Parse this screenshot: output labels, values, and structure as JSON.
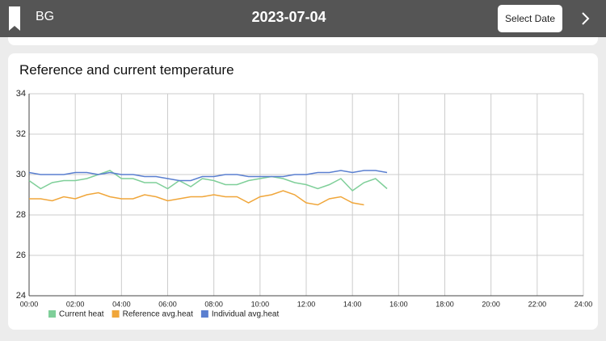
{
  "header": {
    "label": "BG",
    "date": "2023-07-04",
    "button": "Select Date"
  },
  "chart_data": {
    "type": "line",
    "title": "Reference and current temperature",
    "x": [
      0,
      0.5,
      1,
      1.5,
      2,
      2.5,
      3,
      3.5,
      4,
      4.5,
      5,
      5.5,
      6,
      6.5,
      7,
      7.5,
      8,
      8.5,
      9,
      9.5,
      10,
      10.5,
      11,
      11.5,
      12,
      12.5,
      13,
      13.5,
      14,
      14.5,
      15,
      15.5
    ],
    "series": [
      {
        "name": "Current heat",
        "color": "#7fcf99",
        "values": [
          29.7,
          29.3,
          29.6,
          29.7,
          29.7,
          29.8,
          30.0,
          30.2,
          29.8,
          29.8,
          29.6,
          29.6,
          29.3,
          29.7,
          29.4,
          29.8,
          29.7,
          29.5,
          29.5,
          29.7,
          29.8,
          29.9,
          29.8,
          29.6,
          29.5,
          29.3,
          29.5,
          29.8,
          29.2,
          29.6,
          29.8,
          29.3
        ]
      },
      {
        "name": "Reference avg.heat",
        "color": "#f0a63a",
        "values": [
          28.8,
          28.8,
          28.7,
          28.9,
          28.8,
          29.0,
          29.1,
          28.9,
          28.8,
          28.8,
          29.0,
          28.9,
          28.7,
          28.8,
          28.9,
          28.9,
          29.0,
          28.9,
          28.9,
          28.6,
          28.9,
          29.0,
          29.2,
          29.0,
          28.6,
          28.5,
          28.8,
          28.9,
          28.6,
          28.5,
          null,
          null
        ]
      },
      {
        "name": "Individual avg.heat",
        "color": "#5a7fd0",
        "values": [
          30.1,
          30.0,
          30.0,
          30.0,
          30.1,
          30.1,
          30.0,
          30.1,
          30.0,
          30.0,
          29.9,
          29.9,
          29.8,
          29.7,
          29.7,
          29.9,
          29.9,
          30.0,
          30.0,
          29.9,
          29.9,
          29.9,
          29.9,
          30.0,
          30.0,
          30.1,
          30.1,
          30.2,
          30.1,
          30.2,
          30.2,
          30.1
        ]
      }
    ],
    "xlim": [
      0,
      24
    ],
    "xticks": [
      {
        "value": 0,
        "label": "00:00"
      },
      {
        "value": 2,
        "label": "02:00"
      },
      {
        "value": 4,
        "label": "04:00"
      },
      {
        "value": 6,
        "label": "06:00"
      },
      {
        "value": 8,
        "label": "08:00"
      },
      {
        "value": 10,
        "label": "10:00"
      },
      {
        "value": 12,
        "label": "12:00"
      },
      {
        "value": 14,
        "label": "14:00"
      },
      {
        "value": 16,
        "label": "16:00"
      },
      {
        "value": 18,
        "label": "18:00"
      },
      {
        "value": 20,
        "label": "20:00"
      },
      {
        "value": 22,
        "label": "22:00"
      },
      {
        "value": 24,
        "label": "24:00"
      }
    ],
    "ylim": [
      24,
      34
    ],
    "yticks": [
      24,
      26,
      28,
      30,
      32,
      34
    ],
    "grid": true
  }
}
